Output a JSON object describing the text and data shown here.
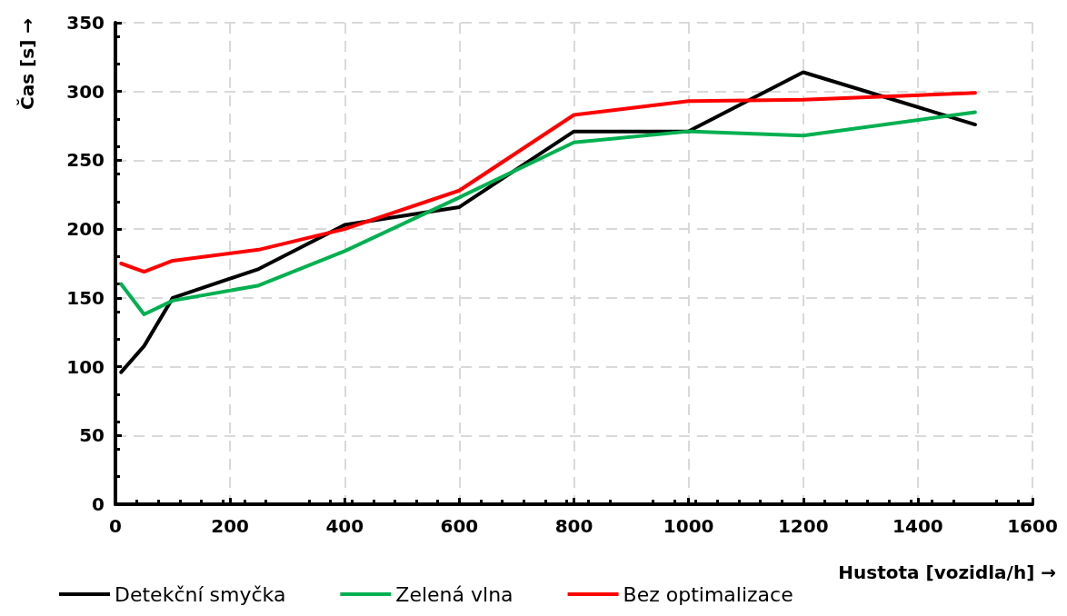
{
  "chart_data": {
    "type": "line",
    "xlabel": "Hustota [vozidla/h] →",
    "ylabel": "Čas [s] →",
    "x": [
      10,
      50,
      100,
      250,
      400,
      600,
      800,
      1000,
      1200,
      1500
    ],
    "series": [
      {
        "name": "Detekční smyčka",
        "color": "#000000",
        "values": [
          96,
          115,
          150,
          171,
          203,
          216,
          271,
          271,
          314,
          276
        ]
      },
      {
        "name": "Zelená vlna",
        "color": "#00b050",
        "values": [
          160,
          138,
          148,
          159,
          184,
          223,
          263,
          271,
          268,
          285
        ]
      },
      {
        "name": "Bez optimalizace",
        "color": "#ff0000",
        "values": [
          175,
          169,
          177,
          185,
          200,
          228,
          283,
          293,
          294,
          299
        ]
      }
    ],
    "xlim": [
      0,
      1600
    ],
    "xticks": [
      0,
      200,
      400,
      600,
      800,
      1000,
      1200,
      1400,
      1600
    ],
    "ylim": [
      0,
      350
    ],
    "yticks": [
      0,
      50,
      100,
      150,
      200,
      250,
      300,
      350
    ],
    "grid": true,
    "legend": "bottom",
    "marker": "none",
    "line_style": "solid"
  }
}
